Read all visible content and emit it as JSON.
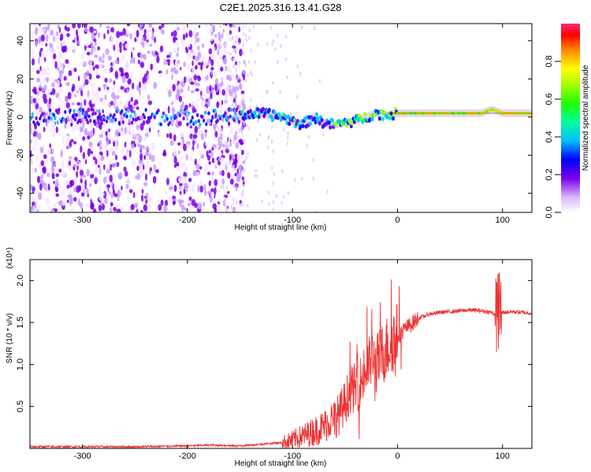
{
  "title": "C2E1.2025.316.13.41.G28",
  "chart_data": [
    {
      "type": "heatmap",
      "name": "spectrogram",
      "xlabel": "Height of straight line (km)",
      "ylabel": "Frequency (Hz)",
      "xlim": [
        -350,
        128
      ],
      "ylim": [
        -50,
        49
      ],
      "xticks": [
        "-300",
        "-200",
        "-100",
        "0",
        "100"
      ],
      "xtick_values": [
        -300,
        -200,
        -100,
        0,
        100
      ],
      "yticks": [
        "-40",
        "-20",
        "0",
        "20",
        "40"
      ],
      "ytick_values": [
        -40,
        -20,
        0,
        20,
        40
      ],
      "colorbar": {
        "label": "Normalized spectral amplitude",
        "range": [
          0,
          1
        ],
        "ticks": [
          "0.0",
          "0.2",
          "0.4",
          "0.6",
          "0.8"
        ],
        "tick_values": [
          0.0,
          0.2,
          0.4,
          0.6,
          0.8
        ]
      },
      "signal_track": {
        "x": [
          -150,
          -130,
          -110,
          -100,
          -90,
          -80,
          -70,
          -60,
          -50,
          -40,
          -30,
          -20,
          -10,
          0,
          20,
          40,
          60,
          80,
          90,
          100,
          128
        ],
        "y": [
          1,
          2,
          0,
          -2,
          -4,
          0,
          -3,
          -4,
          -3,
          -2,
          0,
          2,
          1,
          2,
          2,
          2,
          2,
          2,
          4,
          2,
          2
        ]
      }
    },
    {
      "type": "line",
      "name": "snr",
      "xlabel": "Height of straight line (km)",
      "ylabel": "SNR (10 * v/v)",
      "scale_note": "(x10⁴)",
      "xlim": [
        -350,
        128
      ],
      "ylim": [
        0,
        2.25
      ],
      "xticks": [
        "-300",
        "-200",
        "-100",
        "0",
        "100"
      ],
      "xtick_values": [
        -300,
        -200,
        -100,
        0,
        100
      ],
      "yticks": [
        "0.5",
        "1.0",
        "1.5",
        "2.0"
      ],
      "ytick_values": [
        0.5,
        1.0,
        1.5,
        2.0
      ],
      "color": "#ee3333",
      "series": [
        {
          "name": "SNR",
          "x": [
            -350,
            -300,
            -250,
            -200,
            -180,
            -150,
            -130,
            -110,
            -100,
            -90,
            -80,
            -70,
            -65,
            -60,
            -55,
            -50,
            -45,
            -40,
            -35,
            -30,
            -25,
            -20,
            -15,
            -10,
            -5,
            0,
            5,
            10,
            20,
            30,
            40,
            50,
            60,
            70,
            80,
            90,
            95,
            100,
            110,
            128
          ],
          "y": [
            0.02,
            0.02,
            0.02,
            0.03,
            0.04,
            0.03,
            0.05,
            0.07,
            0.1,
            0.15,
            0.2,
            0.26,
            0.33,
            0.35,
            0.42,
            0.55,
            0.7,
            0.72,
            0.8,
            0.92,
            1.05,
            1.0,
            1.12,
            1.2,
            1.3,
            1.32,
            1.4,
            1.45,
            1.55,
            1.6,
            1.62,
            1.63,
            1.64,
            1.65,
            1.64,
            1.62,
            1.58,
            1.62,
            1.63,
            1.61
          ]
        }
      ]
    }
  ]
}
